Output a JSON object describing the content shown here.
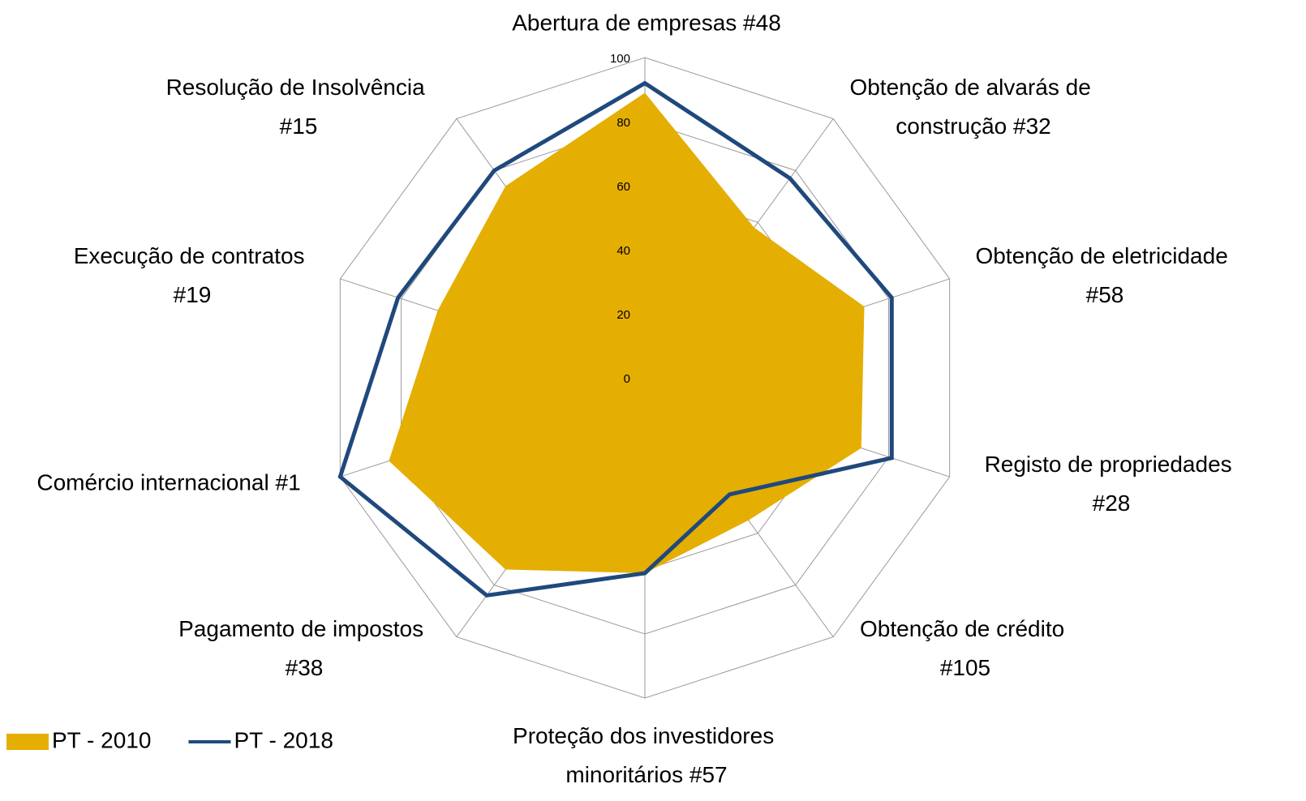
{
  "chart_data": {
    "type": "radar",
    "categories": [
      "Abertura de empresas #48",
      "Obtenção de alvarás de construção #32",
      "Obtenção de eletricidade #58",
      "Registo de propriedades #28",
      "Obtenção de crédito #105",
      "Proteção dos investidores minoritários #57",
      "Pagamento de impostos #38",
      "Comércio internacional #1",
      "Execução de contratos #19",
      "Resolução de Insolvência #15"
    ],
    "series": [
      {
        "name": "PT - 2010",
        "color": "#e5ae02",
        "fill": true,
        "values": [
          89,
          58,
          72,
          71,
          55,
          61,
          74,
          84,
          68,
          74
        ]
      },
      {
        "name": "PT - 2018",
        "color": "#1f497d",
        "fill": false,
        "values": [
          92,
          77,
          81,
          81,
          45,
          61,
          84,
          100,
          81,
          80
        ]
      }
    ],
    "ylim": [
      0,
      100
    ],
    "yticks": [
      0,
      20,
      40,
      60,
      80,
      100
    ],
    "grid": true,
    "legend": "bottom-left"
  }
}
